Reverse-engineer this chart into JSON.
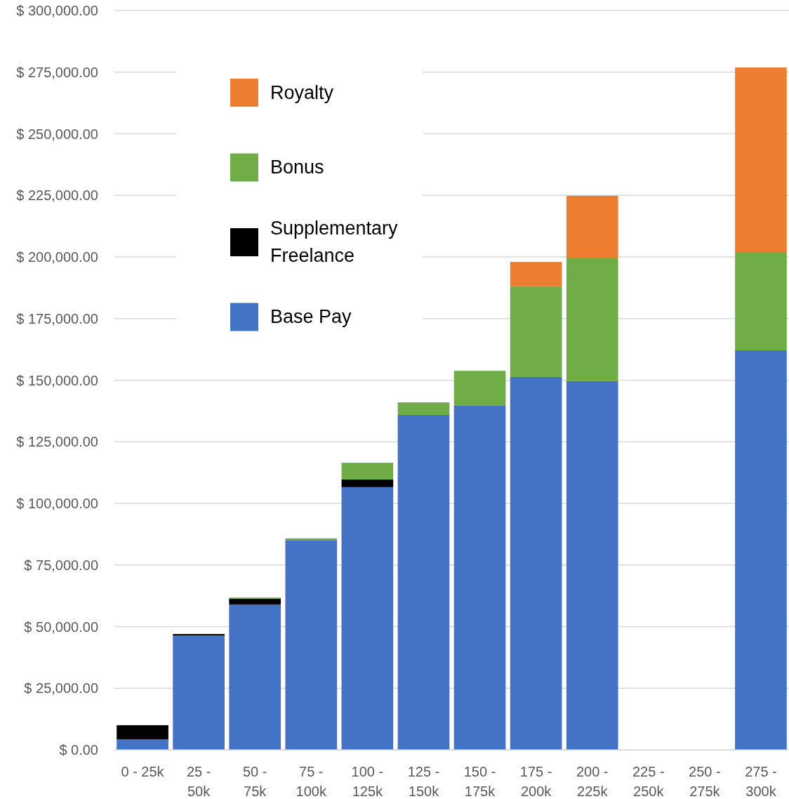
{
  "chart_data": {
    "type": "bar",
    "stacked": true,
    "categories": [
      "0 - 25k",
      "25 - 50k",
      "50 - 75k",
      "75 - 100k",
      "100 - 125k",
      "125 - 150k",
      "150 - 175k",
      "175 - 200k",
      "200 - 225k",
      "225 - 250k",
      "250 - 275k",
      "275 - 300k"
    ],
    "series": [
      {
        "name": "Base Pay",
        "color": "#4472c4",
        "values": [
          4300,
          46400,
          59000,
          84900,
          106600,
          135900,
          139600,
          151300,
          149600,
          0,
          0,
          162100
        ]
      },
      {
        "name": "Supplementary Freelance",
        "color": "#000000",
        "values": [
          5700,
          600,
          2300,
          0,
          3100,
          0,
          0,
          0,
          0,
          0,
          0,
          0
        ]
      },
      {
        "name": "Bonus",
        "color": "#70ad47",
        "values": [
          0,
          0,
          500,
          900,
          6800,
          5100,
          14200,
          36700,
          50100,
          0,
          0,
          39900
        ]
      },
      {
        "name": "Royalty",
        "color": "#ed7d31",
        "values": [
          0,
          0,
          0,
          0,
          0,
          0,
          0,
          10000,
          25100,
          0,
          0,
          74900
        ]
      }
    ],
    "ylim": [
      0,
      300000
    ],
    "yticks": [
      {
        "value": 0,
        "label": "$ 0.00"
      },
      {
        "value": 25000,
        "label": "$ 25,000.00"
      },
      {
        "value": 50000,
        "label": "$ 50,000.00"
      },
      {
        "value": 75000,
        "label": "$ 75,000.00"
      },
      {
        "value": 100000,
        "label": "$ 100,000.00"
      },
      {
        "value": 125000,
        "label": "$ 125,000.00"
      },
      {
        "value": 150000,
        "label": "$ 150,000.00"
      },
      {
        "value": 175000,
        "label": "$ 175,000.00"
      },
      {
        "value": 200000,
        "label": "$ 200,000.00"
      },
      {
        "value": 225000,
        "label": "$ 225,000.00"
      },
      {
        "value": 250000,
        "label": "$ 250,000.00"
      },
      {
        "value": 275000,
        "label": "$ 275,000.00"
      },
      {
        "value": 300000,
        "label": "$ 300,000.00"
      }
    ],
    "grid": "y",
    "legend": "top left"
  }
}
